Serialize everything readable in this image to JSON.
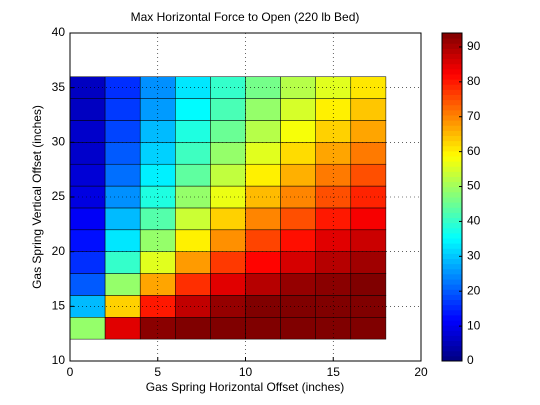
{
  "chart_data": {
    "type": "heatmap",
    "title": "Max Horizontal Force to Open (220 lb Bed)",
    "xlabel": "Gas Spring Horizontal Offset (inches)",
    "ylabel": "Gas Spring Vertical Offset (inches)",
    "xlim": [
      0,
      20
    ],
    "xticks": [
      0,
      5,
      10,
      15,
      20
    ],
    "ylim": [
      10,
      40
    ],
    "yticks": [
      10,
      15,
      20,
      25,
      30,
      35,
      40
    ],
    "grid": true,
    "colormap": "jet",
    "clim": [
      0,
      94
    ],
    "cticks": [
      0,
      10,
      20,
      30,
      40,
      50,
      60,
      70,
      80,
      90
    ],
    "x_edges": [
      0,
      2,
      4,
      6,
      8,
      10,
      12,
      14,
      16,
      18
    ],
    "y_edges": [
      12,
      14,
      16,
      18,
      20,
      22,
      24,
      26,
      28,
      30,
      32,
      34,
      36
    ],
    "values": [
      [
        49,
        85,
        93,
        95,
        96,
        96,
        96,
        96,
        96
      ],
      [
        29,
        63,
        80,
        88,
        92,
        94,
        95,
        95,
        96
      ],
      [
        20,
        49,
        67,
        78,
        85,
        89,
        92,
        93,
        94
      ],
      [
        16,
        40,
        56,
        68,
        77,
        82,
        86,
        89,
        91
      ],
      [
        13,
        33,
        49,
        60,
        69,
        76,
        81,
        85,
        87
      ],
      [
        11,
        29,
        43,
        54,
        63,
        70,
        75,
        80,
        83
      ],
      [
        9,
        25,
        38,
        49,
        57,
        65,
        70,
        75,
        79
      ],
      [
        8,
        22,
        34,
        44,
        53,
        60,
        66,
        71,
        75
      ],
      [
        7,
        20,
        31,
        41,
        49,
        56,
        62,
        67,
        71
      ],
      [
        7,
        18,
        29,
        38,
        45,
        52,
        58,
        63,
        67
      ],
      [
        6,
        17,
        26,
        35,
        42,
        49,
        55,
        60,
        64
      ],
      [
        6,
        16,
        25,
        33,
        40,
        46,
        52,
        56,
        61
      ]
    ]
  }
}
